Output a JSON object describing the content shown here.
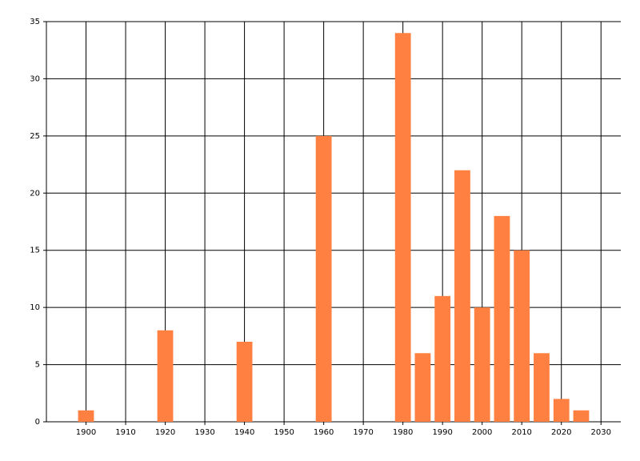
{
  "chart_data": {
    "type": "bar",
    "x": [
      1900,
      1920,
      1940,
      1960,
      1980,
      1985,
      1990,
      1995,
      2000,
      2005,
      2010,
      2015,
      2020,
      2025
    ],
    "values": [
      1,
      8,
      7,
      25,
      34,
      6,
      11,
      22,
      10,
      18,
      15,
      6,
      2,
      1
    ],
    "color": "#ff8040",
    "xlim": [
      1890,
      2035
    ],
    "ylim": [
      0,
      35
    ],
    "xticks": [
      1900,
      1910,
      1920,
      1930,
      1940,
      1950,
      1960,
      1970,
      1980,
      1990,
      2000,
      2010,
      2020,
      2030
    ],
    "yticks": [
      0,
      5,
      10,
      15,
      20,
      25,
      30,
      35
    ],
    "grid": true
  }
}
